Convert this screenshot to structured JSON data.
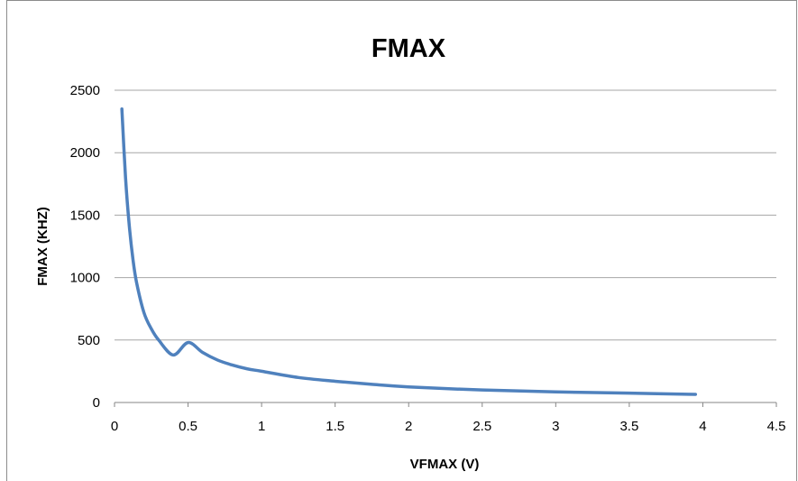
{
  "chart_data": {
    "type": "line",
    "title": "FMAX",
    "xlabel": "VFMAX (V)",
    "ylabel": "FMAX (KHZ)",
    "xlim": [
      0,
      4.5
    ],
    "ylim": [
      0,
      2500
    ],
    "x_ticks": [
      "0",
      "0.5",
      "1",
      "1.5",
      "2",
      "2.5",
      "3",
      "3.5",
      "4",
      "4.5"
    ],
    "y_ticks": [
      "0",
      "500",
      "1000",
      "1500",
      "2000",
      "2500"
    ],
    "grid": "horizontal",
    "legend": "none",
    "series": [
      {
        "color": "#4f81bd",
        "x": [
          0.05,
          0.075,
          0.1,
          0.125,
          0.15,
          0.2,
          0.25,
          0.3,
          0.4,
          0.5,
          0.6,
          0.7,
          0.8,
          0.9,
          1.0,
          1.25,
          1.5,
          1.75,
          2.0,
          2.5,
          3.0,
          3.5,
          3.95
        ],
        "values": [
          2350,
          1800,
          1420,
          1150,
          960,
          720,
          590,
          500,
          380,
          480,
          400,
          340,
          300,
          270,
          250,
          200,
          170,
          145,
          125,
          100,
          85,
          75,
          65
        ]
      }
    ]
  }
}
